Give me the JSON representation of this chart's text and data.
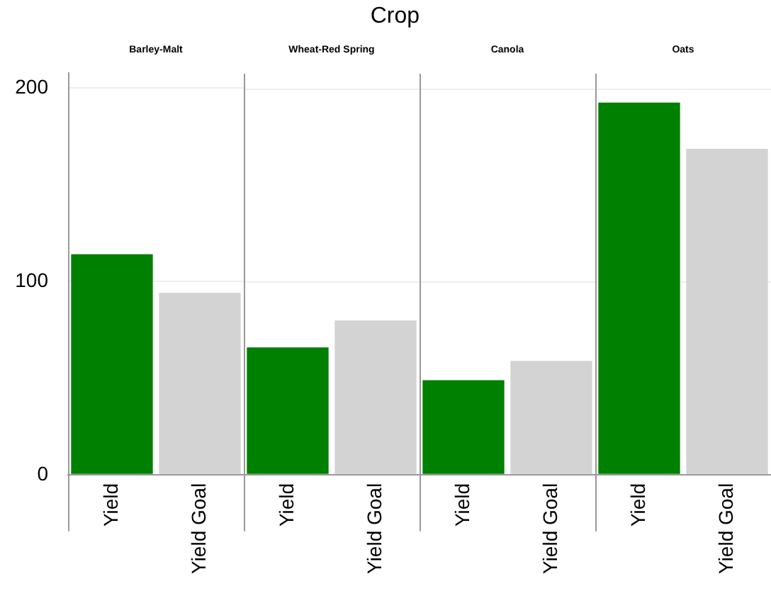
{
  "chart_data": [
    {
      "type": "bar",
      "subtitle": "Barley-Malt",
      "categories": [
        "Yield",
        "Yield Goal"
      ],
      "values": [
        114,
        94
      ],
      "colors": [
        "#008000",
        "#d3d3d3"
      ],
      "ylim": [
        0,
        208
      ],
      "yticks": [
        0,
        100,
        200
      ],
      "grid": "y"
    },
    {
      "type": "bar",
      "title": "Crop",
      "subtitle": "Wheat-Red Spring",
      "categories": [
        "Yield",
        "Yield Goal"
      ],
      "values": [
        66,
        80
      ],
      "colors": [
        "#008000",
        "#d3d3d3"
      ],
      "ylim": [
        0,
        208
      ],
      "yticks": [
        0,
        100,
        200
      ],
      "grid": "y",
      "tick_labels": "x"
    },
    {
      "type": "bar",
      "subtitle": "Canola",
      "categories": [
        "Yield",
        "Yield Goal"
      ],
      "values": [
        49,
        59
      ],
      "colors": [
        "#008000",
        "#d3d3d3"
      ],
      "ylim": [
        0,
        208
      ],
      "yticks": [
        0,
        100,
        200
      ],
      "grid": "y",
      "tick_labels": "x"
    },
    {
      "type": "bar",
      "subtitle": "Oats",
      "categories": [
        "Yield",
        "Yield Goal"
      ],
      "values": [
        193,
        169
      ],
      "colors": [
        "#008000",
        "#d3d3d3"
      ],
      "ylim": [
        0,
        208
      ],
      "yticks": [
        0,
        100,
        200
      ],
      "grid": "y",
      "tick_labels": "x"
    }
  ]
}
